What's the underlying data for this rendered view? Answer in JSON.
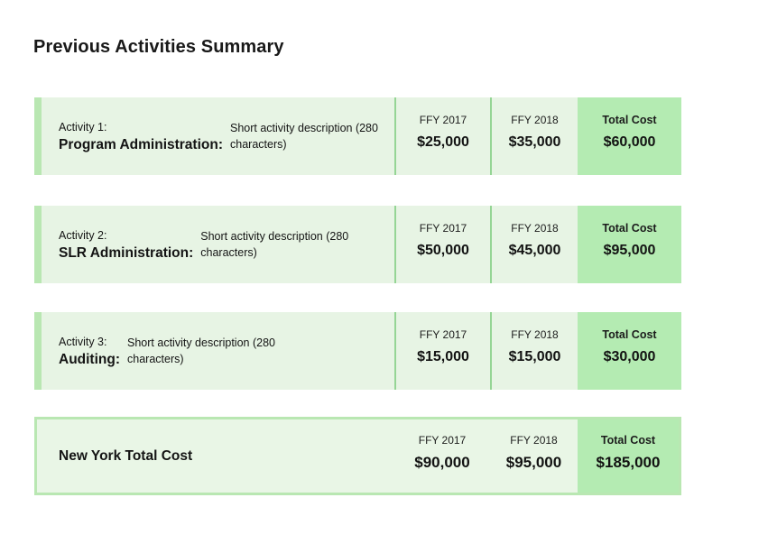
{
  "page_title": "Previous Activities Summary",
  "colors": {
    "card_background": "#e7f4e4",
    "accent_bar_green": "#b9e7b2",
    "column_divider_green": "#95d595",
    "total_cell_green": "#b4ebb2",
    "summary_border_green": "#b9e7b2",
    "text_dark": "#1a1a1a"
  },
  "table": {
    "columns": [
      "FFY 2017",
      "FFY 2018",
      "Total Cost"
    ],
    "activities": [
      {
        "activity_label": "Activity 1:",
        "name": "Program Administration:",
        "description": "Short activity description (280 characters)",
        "ffy_2017": "$25,000",
        "ffy_2018": "$35,000",
        "total": "$60,000"
      },
      {
        "activity_label": "Activity 2:",
        "name": "SLR Administration:",
        "description": "Short activity description (280 characters)",
        "ffy_2017": "$50,000",
        "ffy_2018": "$45,000",
        "total": "$95,000"
      },
      {
        "activity_label": "Activity 3:",
        "name": "Auditing:",
        "description": "Short activity description (280 characters)",
        "ffy_2017": "$15,000",
        "ffy_2018": "$15,000",
        "total": "$30,000"
      }
    ],
    "summary": {
      "label": "New York Total Cost",
      "ffy_2017": "$90,000",
      "ffy_2018": "$95,000",
      "total": "$185,000"
    }
  }
}
